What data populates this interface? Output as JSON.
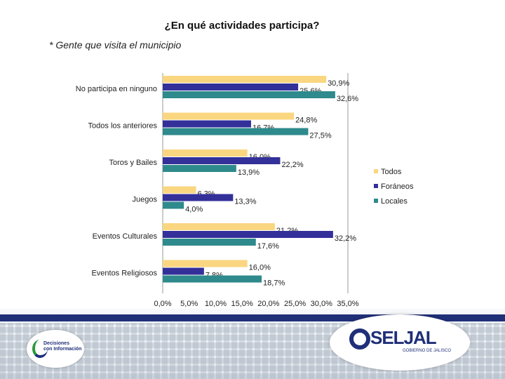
{
  "page": {
    "title": "¿En qué actividades participa?",
    "subtitle": "* Gente que visita el municipio"
  },
  "colors": {
    "todos": "#f9d67f",
    "foraneos": "#33309a",
    "locales": "#2e8a8c",
    "grid": "#9a9a9a",
    "footer_bar": "#1f2f78",
    "logo_green": "#2a9a3a"
  },
  "chart_data": {
    "type": "bar",
    "orientation": "horizontal",
    "title": "¿En qué actividades participa?",
    "subtitle": "* Gente que visita el municipio",
    "categories": [
      "No participa en ninguno",
      "Todos los anteriores",
      "Toros y Bailes",
      "Juegos",
      "Eventos Culturales",
      "Eventos Religiosos"
    ],
    "series": [
      {
        "name": "Todos",
        "values": [
          30.9,
          24.8,
          16.0,
          6.3,
          21.2,
          16.0
        ],
        "labels": [
          "30,9%",
          "24,8%",
          "16,0%",
          "6,3%",
          "21,2%",
          "16,0%"
        ]
      },
      {
        "name": "Foráneos",
        "values": [
          25.6,
          16.7,
          22.2,
          13.3,
          32.2,
          7.8
        ],
        "labels": [
          "25,6%",
          "16,7%",
          "22,2%",
          "13,3%",
          "32,2%",
          "7,8%"
        ]
      },
      {
        "name": "Locales",
        "values": [
          32.6,
          27.5,
          13.9,
          4.0,
          17.6,
          18.7
        ],
        "labels": [
          "32,6%",
          "27,5%",
          "13,9%",
          "4,0%",
          "17,6%",
          "18,7%"
        ]
      }
    ],
    "xlim": [
      0,
      35
    ],
    "ticks": [
      0,
      5,
      10,
      15,
      20,
      25,
      30,
      35
    ],
    "tick_labels": [
      "0,0%",
      "5,0%",
      "10,0%",
      "15,0%",
      "20,0%",
      "25,0%",
      "30,0%",
      "35,0%"
    ],
    "legend_position": "right"
  },
  "footer": {
    "logo_left_line1": "Decisiones",
    "logo_left_line2": "con Información",
    "logo_right_text": "SELJAL",
    "logo_right_sub": "GOBIERNO DE JALISCO"
  }
}
